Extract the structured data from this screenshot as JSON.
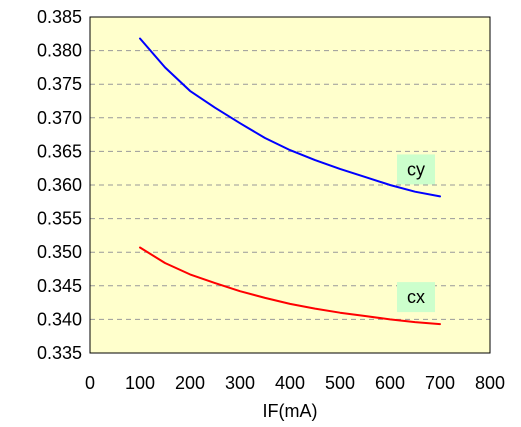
{
  "chart_data": {
    "type": "line",
    "title": "",
    "xlabel": "IF(mA)",
    "ylabel": "",
    "xlim": [
      0,
      800
    ],
    "ylim": [
      0.335,
      0.385
    ],
    "x_ticks": [
      "0",
      "100",
      "200",
      "300",
      "400",
      "500",
      "600",
      "700",
      "800"
    ],
    "y_ticks": [
      "0.335",
      "0.340",
      "0.345",
      "0.350",
      "0.355",
      "0.360",
      "0.365",
      "0.370",
      "0.375",
      "0.380",
      "0.385"
    ],
    "grid": "horizontal-dashed",
    "colors": {
      "plot_background": "#FFFFCC",
      "grid": "#999999",
      "label_background": "#CCFFCC"
    },
    "series": [
      {
        "name": "cy",
        "color": "#0000FF",
        "x": [
          100,
          150,
          200,
          250,
          300,
          350,
          400,
          450,
          500,
          550,
          600,
          650,
          700
        ],
        "y": [
          0.3818,
          0.3775,
          0.374,
          0.3715,
          0.3692,
          0.367,
          0.3652,
          0.3637,
          0.3624,
          0.3612,
          0.36,
          0.359,
          0.3583
        ]
      },
      {
        "name": "cx",
        "color": "#FF0000",
        "x": [
          100,
          150,
          200,
          250,
          300,
          350,
          400,
          450,
          500,
          550,
          600,
          650,
          700
        ],
        "y": [
          0.3507,
          0.3484,
          0.3467,
          0.3454,
          0.3442,
          0.3432,
          0.3423,
          0.3416,
          0.341,
          0.3405,
          0.34,
          0.3396,
          0.3393
        ]
      }
    ]
  }
}
